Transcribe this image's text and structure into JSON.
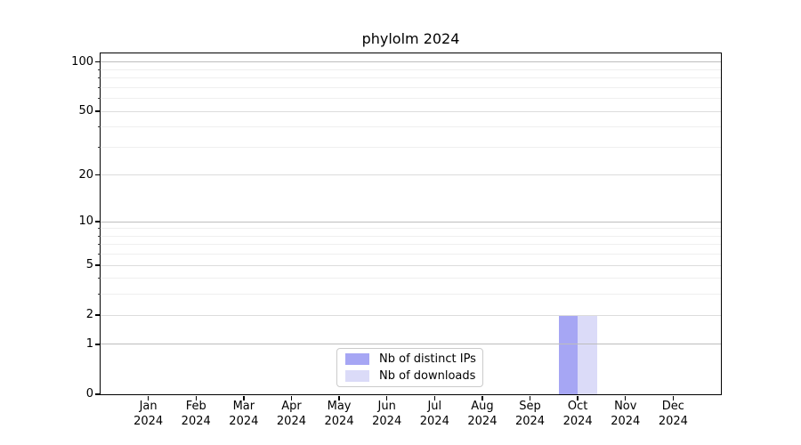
{
  "chart_data": {
    "type": "bar",
    "title": "phylolm 2024",
    "x_categories": [
      "Jan",
      "Feb",
      "Mar",
      "Apr",
      "May",
      "Jun",
      "Jul",
      "Aug",
      "Sep",
      "Oct",
      "Nov",
      "Dec"
    ],
    "x_year_label": "2024",
    "series": [
      {
        "name": "Nb of distinct IPs",
        "color": "#a6a6f4",
        "values": [
          0,
          0,
          0,
          0,
          0,
          0,
          0,
          0,
          0,
          2,
          0,
          0
        ]
      },
      {
        "name": "Nb of downloads",
        "color": "#dbdbf8",
        "values": [
          0,
          0,
          0,
          0,
          0,
          0,
          0,
          0,
          0,
          2,
          0,
          0
        ]
      }
    ],
    "y_scale": "log1p",
    "ylim": [
      0,
      113
    ],
    "y_major_ticks": [
      0,
      1,
      2,
      5,
      10,
      20,
      50,
      100
    ],
    "y_decade_ticks": [
      1,
      10,
      100
    ],
    "y_minor_ticks": [
      3,
      4,
      6,
      7,
      8,
      9,
      30,
      40,
      60,
      70,
      80,
      90
    ],
    "bar_width_fraction": 0.4,
    "legend_position": "lower center",
    "grid": {
      "strong_color": "#bdbdbd",
      "soft_color": "#dcdcdc",
      "minor_color": "#efefef"
    },
    "colors": {
      "spine": "#000000",
      "background": "#ffffff"
    }
  }
}
